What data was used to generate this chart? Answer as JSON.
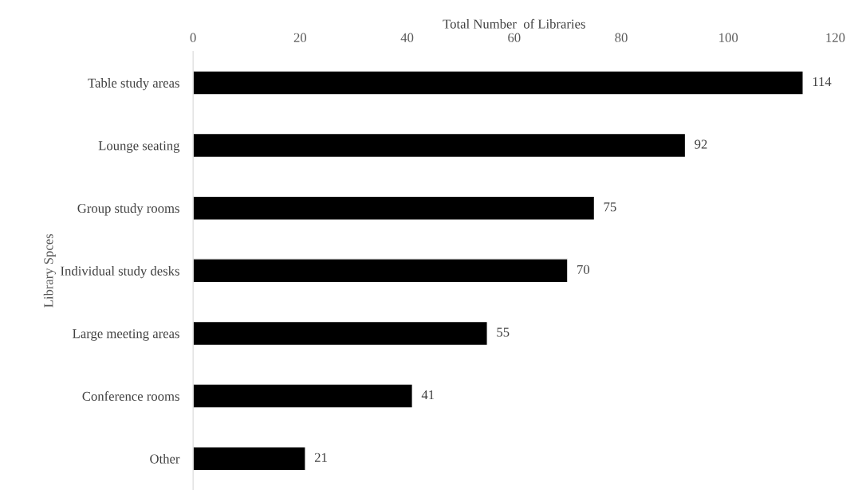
{
  "chart_data": {
    "type": "bar",
    "orientation": "horizontal",
    "xlabel": "Total Number  of Libraries",
    "ylabel": "Library Spces",
    "categories": [
      "Table study areas",
      "Lounge seating",
      "Group study rooms",
      "Individual study desks",
      "Large meeting areas",
      "Conference rooms",
      "Other"
    ],
    "values": [
      114,
      92,
      75,
      70,
      55,
      41,
      21
    ],
    "color": "#000000",
    "data_labels": true,
    "xlim": [
      0,
      120
    ],
    "xticks": [
      0,
      20,
      40,
      60,
      80,
      100,
      120
    ],
    "grid": false
  }
}
